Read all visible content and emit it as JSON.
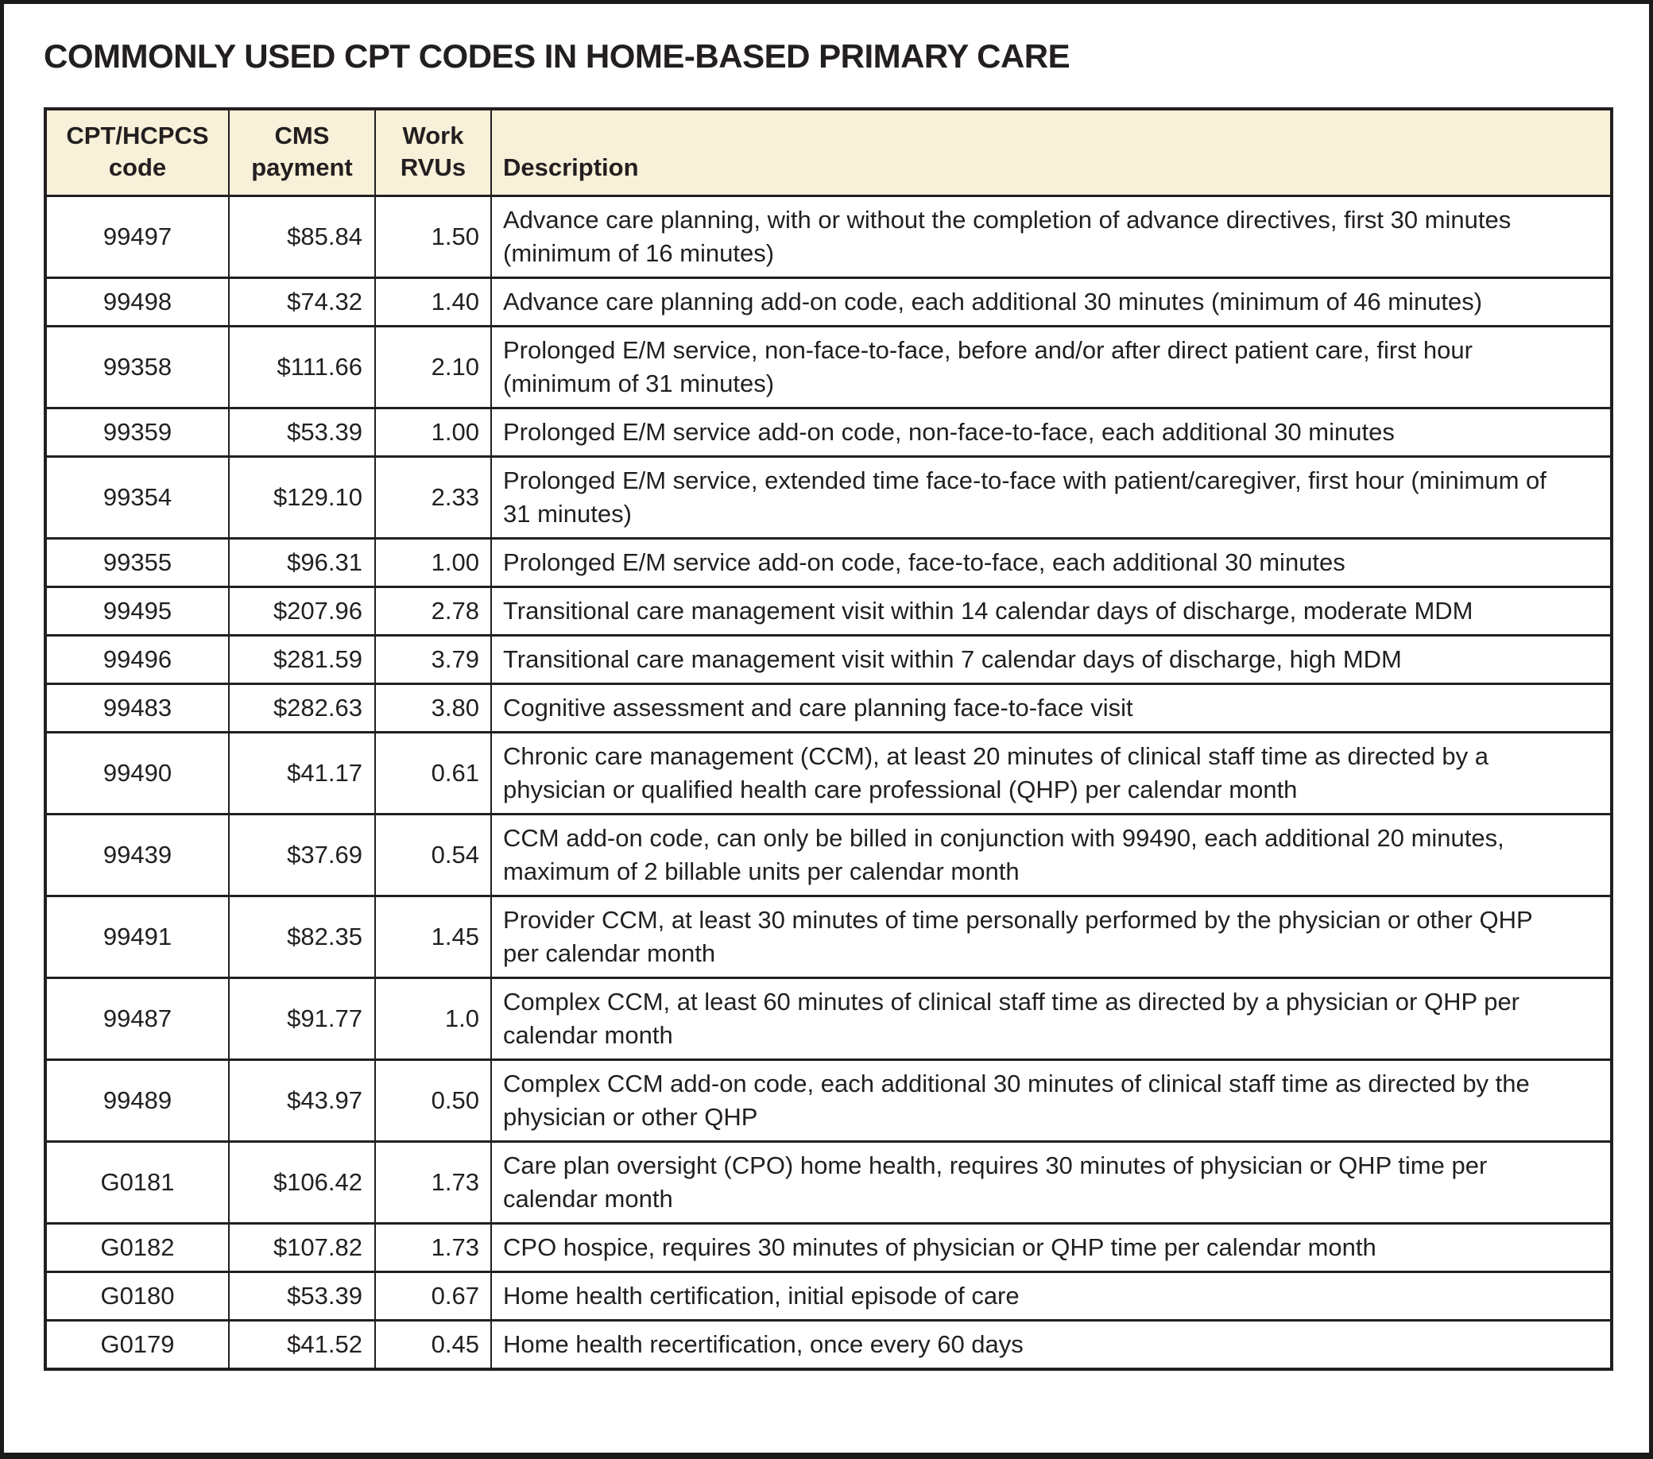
{
  "title": "COMMONLY USED CPT CODES IN HOME-BASED PRIMARY CARE",
  "table": {
    "columns": [
      "CPT/HCPCS code",
      "CMS payment",
      "Work RVUs",
      "Description"
    ],
    "rows": [
      {
        "code": "99497",
        "payment": "$85.84",
        "rvu": "1.50",
        "description": "Advance care planning, with or without the completion of advance directives, first 30 minutes (minimum of 16 minutes)"
      },
      {
        "code": "99498",
        "payment": "$74.32",
        "rvu": "1.40",
        "description": "Advance care planning add-on code, each additional 30 minutes (minimum of 46 minutes)"
      },
      {
        "code": "99358",
        "payment": "$111.66",
        "rvu": "2.10",
        "description": "Prolonged E/M service, non-face-to-face, before and/or after direct patient care, first hour (minimum of 31 minutes)"
      },
      {
        "code": "99359",
        "payment": "$53.39",
        "rvu": "1.00",
        "description": "Prolonged E/M service add-on code, non-face-to-face, each additional 30 minutes"
      },
      {
        "code": "99354",
        "payment": "$129.10",
        "rvu": "2.33",
        "description": "Prolonged E/M service, extended time face-to-face with patient/caregiver, first hour (minimum of 31 minutes)"
      },
      {
        "code": "99355",
        "payment": "$96.31",
        "rvu": "1.00",
        "description": "Prolonged E/M service add-on code, face-to-face, each additional 30 minutes"
      },
      {
        "code": "99495",
        "payment": "$207.96",
        "rvu": "2.78",
        "description": "Transitional care management visit within 14 calendar days of discharge, moderate MDM"
      },
      {
        "code": "99496",
        "payment": "$281.59",
        "rvu": "3.79",
        "description": "Transitional care management visit within 7 calendar days of discharge, high MDM"
      },
      {
        "code": "99483",
        "payment": "$282.63",
        "rvu": "3.80",
        "description": "Cognitive assessment and care planning face-to-face visit"
      },
      {
        "code": "99490",
        "payment": "$41.17",
        "rvu": "0.61",
        "description": "Chronic care management (CCM), at least 20 minutes of clinical staff time as directed by a physician or qualified health care professional (QHP) per calendar month"
      },
      {
        "code": "99439",
        "payment": "$37.69",
        "rvu": "0.54",
        "description": "CCM add-on code, can only be billed in conjunction with 99490, each additional 20 minutes, maximum of 2 billable units per calendar month"
      },
      {
        "code": "99491",
        "payment": "$82.35",
        "rvu": "1.45",
        "description": "Provider CCM, at least 30 minutes of time personally performed by the physician or other QHP per calendar month"
      },
      {
        "code": "99487",
        "payment": "$91.77",
        "rvu": "1.0",
        "description": "Complex CCM, at least 60 minutes of clinical staff time as directed by a physician or QHP per calendar month"
      },
      {
        "code": "99489",
        "payment": "$43.97",
        "rvu": "0.50",
        "description": "Complex CCM add-on code, each additional 30 minutes of clinical staff time as directed by the physician or other QHP"
      },
      {
        "code": "G0181",
        "payment": "$106.42",
        "rvu": "1.73",
        "description": "Care plan oversight (CPO) home health, requires 30 minutes of physician or QHP time per calendar month"
      },
      {
        "code": "G0182",
        "payment": "$107.82",
        "rvu": "1.73",
        "description": "CPO hospice, requires 30 minutes of physician or QHP time per calendar month"
      },
      {
        "code": "G0180",
        "payment": "$53.39",
        "rvu": "0.67",
        "description": "Home health certification, initial episode of care"
      },
      {
        "code": "G0179",
        "payment": "$41.52",
        "rvu": "0.45",
        "description": "Home health recertification, once every 60 days"
      }
    ]
  },
  "colors": {
    "header_background": "#f8f0d8",
    "border": "#231f20",
    "text": "#231f20",
    "page_background": "#ffffff"
  }
}
